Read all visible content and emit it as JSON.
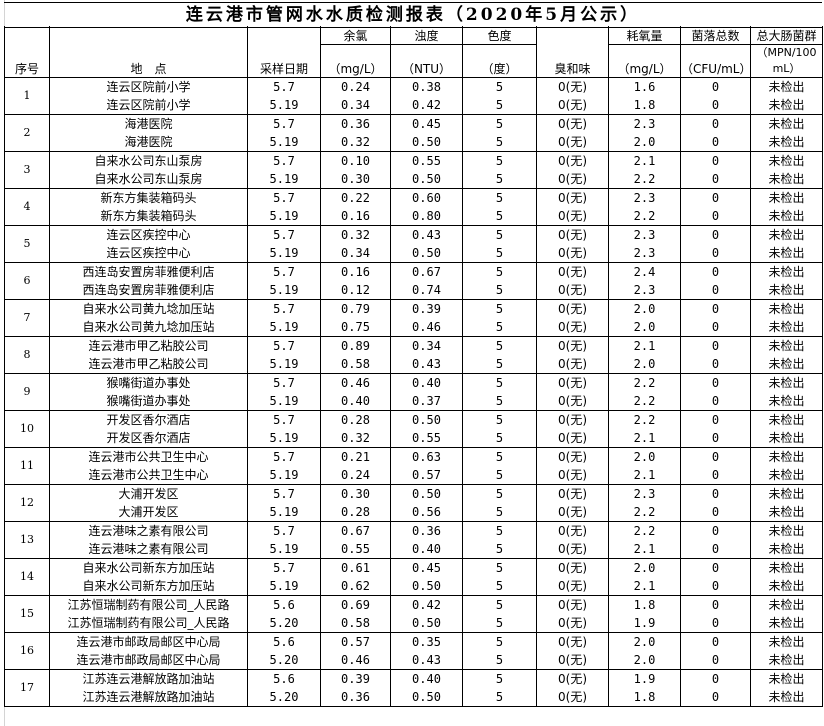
{
  "title": "连云港市管网水水质检测报表（2020年5月公示）",
  "headers": {
    "no": "序号",
    "site": "地　点",
    "date": "采样日期",
    "chlorine": "余氯",
    "chlorine_unit": "（mg/L）",
    "turbidity": "浊度",
    "turbidity_unit": "（NTU）",
    "color": "色度",
    "color_unit": "（度）",
    "odor": "臭和味",
    "cod": "耗氧量",
    "cod_unit": "（mg/L）",
    "cfu": "菌落总数",
    "cfu_unit": "（CFU/mL）",
    "coliform": "总大肠菌群",
    "coliform_unit": "（MPN/100 mL）"
  },
  "groups": [
    {
      "no": "1",
      "rows": [
        [
          "连云区院前小学",
          "5.7",
          "0.24",
          "0.38",
          "5",
          "0(无)",
          "1.6",
          "0",
          "未检出"
        ],
        [
          "连云区院前小学",
          "5.19",
          "0.34",
          "0.42",
          "5",
          "0(无)",
          "1.8",
          "0",
          "未检出"
        ]
      ]
    },
    {
      "no": "2",
      "rows": [
        [
          "海港医院",
          "5.7",
          "0.36",
          "0.45",
          "5",
          "0(无)",
          "2.3",
          "0",
          "未检出"
        ],
        [
          "海港医院",
          "5.19",
          "0.32",
          "0.50",
          "5",
          "0(无)",
          "2.0",
          "0",
          "未检出"
        ]
      ]
    },
    {
      "no": "3",
      "rows": [
        [
          "自来水公司东山泵房",
          "5.7",
          "0.10",
          "0.55",
          "5",
          "0(无)",
          "2.1",
          "0",
          "未检出"
        ],
        [
          "自来水公司东山泵房",
          "5.19",
          "0.30",
          "0.50",
          "5",
          "0(无)",
          "2.2",
          "0",
          "未检出"
        ]
      ]
    },
    {
      "no": "4",
      "rows": [
        [
          "新东方集装箱码头",
          "5.7",
          "0.22",
          "0.60",
          "5",
          "0(无)",
          "2.3",
          "0",
          "未检出"
        ],
        [
          "新东方集装箱码头",
          "5.19",
          "0.16",
          "0.80",
          "5",
          "0(无)",
          "2.2",
          "0",
          "未检出"
        ]
      ]
    },
    {
      "no": "5",
      "rows": [
        [
          "连云区疾控中心",
          "5.7",
          "0.32",
          "0.43",
          "5",
          "0(无)",
          "2.3",
          "0",
          "未检出"
        ],
        [
          "连云区疾控中心",
          "5.19",
          "0.34",
          "0.50",
          "5",
          "0(无)",
          "2.3",
          "0",
          "未检出"
        ]
      ]
    },
    {
      "no": "6",
      "rows": [
        [
          "西连岛安置房菲雅便利店",
          "5.7",
          "0.16",
          "0.67",
          "5",
          "0(无)",
          "2.4",
          "0",
          "未检出"
        ],
        [
          "西连岛安置房菲雅便利店",
          "5.19",
          "0.12",
          "0.74",
          "5",
          "0(无)",
          "2.3",
          "0",
          "未检出"
        ]
      ]
    },
    {
      "no": "7",
      "rows": [
        [
          "自来水公司黄九埝加压站",
          "5.7",
          "0.79",
          "0.39",
          "5",
          "0(无)",
          "2.0",
          "0",
          "未检出"
        ],
        [
          "自来水公司黄九埝加压站",
          "5.19",
          "0.75",
          "0.46",
          "5",
          "0(无)",
          "2.0",
          "0",
          "未检出"
        ]
      ]
    },
    {
      "no": "8",
      "rows": [
        [
          "连云港市甲乙粘胶公司",
          "5.7",
          "0.89",
          "0.34",
          "5",
          "0(无)",
          "2.1",
          "0",
          "未检出"
        ],
        [
          "连云港市甲乙粘胶公司",
          "5.19",
          "0.58",
          "0.43",
          "5",
          "0(无)",
          "2.0",
          "0",
          "未检出"
        ]
      ]
    },
    {
      "no": "9",
      "rows": [
        [
          "猴嘴街道办事处",
          "5.7",
          "0.46",
          "0.40",
          "5",
          "0(无)",
          "2.2",
          "0",
          "未检出"
        ],
        [
          "猴嘴街道办事处",
          "5.19",
          "0.40",
          "0.37",
          "5",
          "0(无)",
          "2.2",
          "0",
          "未检出"
        ]
      ]
    },
    {
      "no": "10",
      "rows": [
        [
          "开发区香尔酒店",
          "5.7",
          "0.28",
          "0.50",
          "5",
          "0(无)",
          "2.2",
          "0",
          "未检出"
        ],
        [
          "开发区香尔酒店",
          "5.19",
          "0.32",
          "0.55",
          "5",
          "0(无)",
          "2.1",
          "0",
          "未检出"
        ]
      ]
    },
    {
      "no": "11",
      "rows": [
        [
          "连云港市公共卫生中心",
          "5.7",
          "0.21",
          "0.63",
          "5",
          "0(无)",
          "2.0",
          "0",
          "未检出"
        ],
        [
          "连云港市公共卫生中心",
          "5.19",
          "0.24",
          "0.57",
          "5",
          "0(无)",
          "2.1",
          "0",
          "未检出"
        ]
      ]
    },
    {
      "no": "12",
      "rows": [
        [
          "大浦开发区",
          "5.7",
          "0.30",
          "0.50",
          "5",
          "0(无)",
          "2.3",
          "0",
          "未检出"
        ],
        [
          "大浦开发区",
          "5.19",
          "0.28",
          "0.56",
          "5",
          "0(无)",
          "2.2",
          "0",
          "未检出"
        ]
      ]
    },
    {
      "no": "13",
      "rows": [
        [
          "连云港味之素有限公司",
          "5.7",
          "0.67",
          "0.36",
          "5",
          "0(无)",
          "2.2",
          "0",
          "未检出"
        ],
        [
          "连云港味之素有限公司",
          "5.19",
          "0.55",
          "0.40",
          "5",
          "0(无)",
          "2.1",
          "0",
          "未检出"
        ]
      ]
    },
    {
      "no": "14",
      "rows": [
        [
          "自来水公司新东方加压站",
          "5.7",
          "0.61",
          "0.45",
          "5",
          "0(无)",
          "2.0",
          "0",
          "未检出"
        ],
        [
          "自来水公司新东方加压站",
          "5.19",
          "0.62",
          "0.50",
          "5",
          "0(无)",
          "2.1",
          "0",
          "未检出"
        ]
      ]
    },
    {
      "no": "15",
      "rows": [
        [
          "江苏恒瑞制药有限公司_人民路",
          "5.6",
          "0.69",
          "0.42",
          "5",
          "0(无)",
          "1.8",
          "0",
          "未检出"
        ],
        [
          "江苏恒瑞制药有限公司_人民路",
          "5.20",
          "0.58",
          "0.50",
          "5",
          "0(无)",
          "1.9",
          "0",
          "未检出"
        ]
      ]
    },
    {
      "no": "16",
      "rows": [
        [
          "连云港市邮政局邮区中心局",
          "5.6",
          "0.57",
          "0.35",
          "5",
          "0(无)",
          "2.0",
          "0",
          "未检出"
        ],
        [
          "连云港市邮政局邮区中心局",
          "5.20",
          "0.46",
          "0.43",
          "5",
          "0(无)",
          "2.0",
          "0",
          "未检出"
        ]
      ]
    },
    {
      "no": "17",
      "rows": [
        [
          "江苏连云港解放路加油站",
          "5.6",
          "0.39",
          "0.40",
          "5",
          "0(无)",
          "1.9",
          "0",
          "未检出"
        ],
        [
          "江苏连云港解放路加油站",
          "5.20",
          "0.36",
          "0.50",
          "5",
          "0(无)",
          "1.8",
          "0",
          "未检出"
        ]
      ]
    }
  ]
}
